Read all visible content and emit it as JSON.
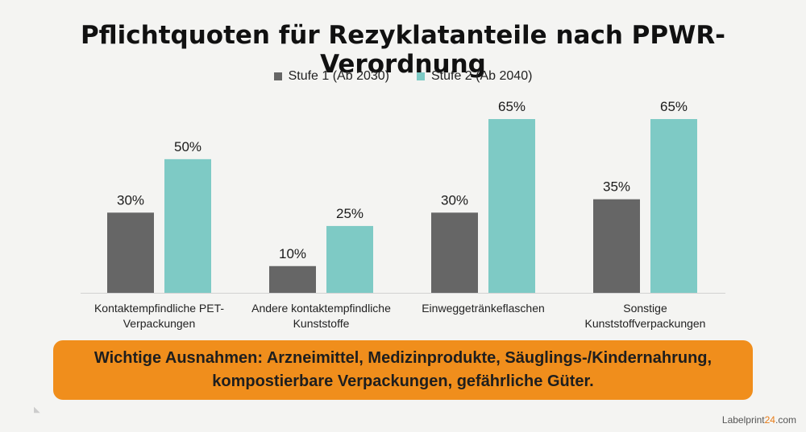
{
  "chart_data": {
    "type": "bar",
    "title": "Pflichtquoten für Rezyklatanteile nach PPWR-Verordnung",
    "categories": [
      [
        "Kontaktempfindliche PET-",
        "Verpackungen"
      ],
      [
        "Andere kontaktempfindliche",
        "Kunststoffe"
      ],
      [
        "Einweggetränkeflaschen"
      ],
      [
        "Sonstige",
        "Kunststoffverpackungen"
      ]
    ],
    "series": [
      {
        "name": "Stufe 1 (Ab 2030)",
        "values": [
          30,
          10,
          30,
          35
        ],
        "labels": [
          "30%",
          "10%",
          "30%",
          "35%"
        ],
        "color": "#666666"
      },
      {
        "name": "Stufe 2 (Ab 2040)",
        "values": [
          50,
          25,
          65,
          65
        ],
        "labels": [
          "50%",
          "25%",
          "65%",
          "65%"
        ],
        "color": "#7ecac5"
      }
    ],
    "ylim": [
      0,
      65
    ],
    "legend_position": "top-center",
    "grid": false
  },
  "note": {
    "line1": "Wichtige Ausnahmen: Arzneimittel, Medizinprodukte, Säuglings-/Kindernahrung,",
    "line2": "kompostierbare Verpackungen, gefährliche Güter.",
    "background": "#f08e1c"
  },
  "brand": {
    "name": "Labelprint",
    "accent": "24",
    "suffix": ".com"
  }
}
